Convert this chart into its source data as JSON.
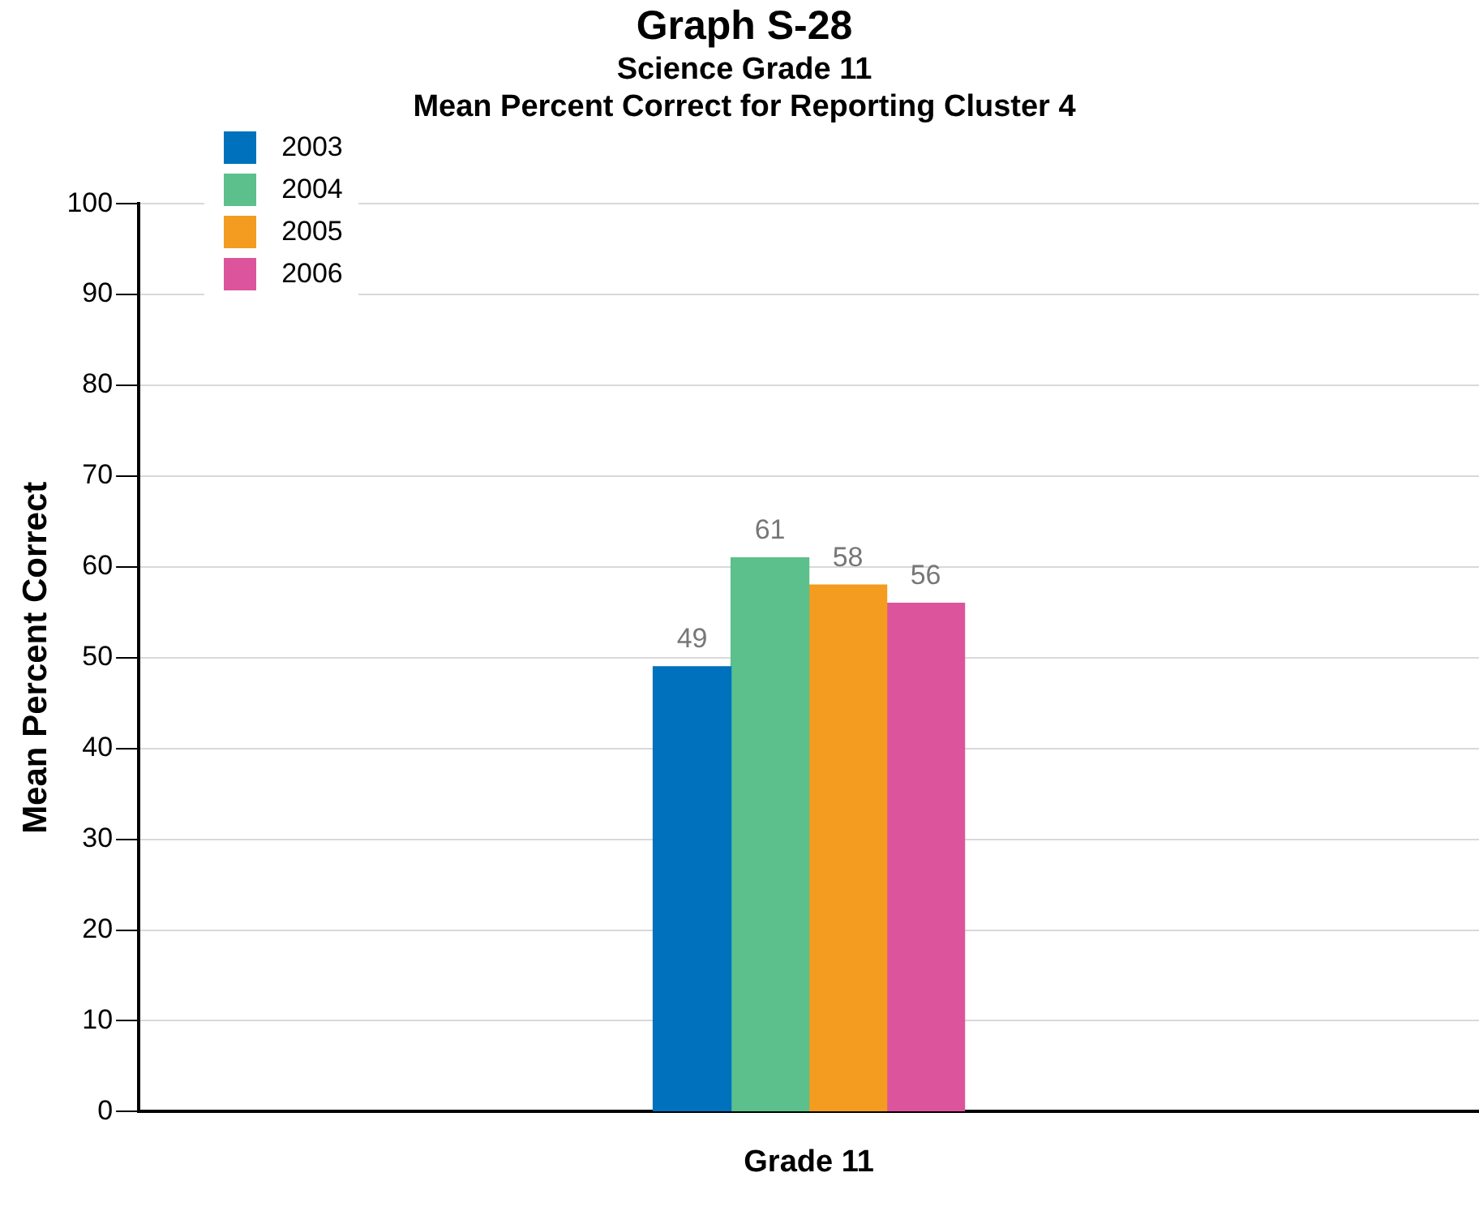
{
  "chart_data": {
    "type": "bar",
    "title": "Graph S-28",
    "subtitle": "Science Grade 11\nMean Percent Correct for Reporting Cluster 4",
    "ylabel": "Mean Percent Correct",
    "categories": [
      "Grade 11"
    ],
    "series": [
      {
        "name": "2003",
        "color": "#0071bc",
        "values": [
          49
        ]
      },
      {
        "name": "2004",
        "color": "#5bc08c",
        "values": [
          61
        ]
      },
      {
        "name": "2005",
        "color": "#f39c1f",
        "values": [
          58
        ]
      },
      {
        "name": "2006",
        "color": "#dc549c",
        "values": [
          56
        ]
      }
    ],
    "ylim": [
      0,
      100
    ],
    "yticks": [
      0,
      10,
      20,
      30,
      40,
      50,
      60,
      70,
      80,
      90,
      100
    ],
    "grid": "y",
    "legend": "top left",
    "data_labels": true
  }
}
